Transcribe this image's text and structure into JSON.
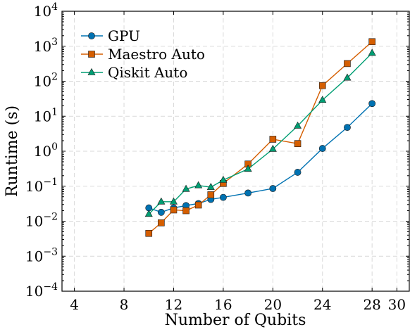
{
  "chart_data": {
    "type": "line",
    "xlabel": "Number of Qubits",
    "ylabel": "Runtime (s)",
    "y_scale": "log",
    "xlim": [
      3,
      31
    ],
    "ylim": [
      0.0001,
      10000
    ],
    "x_ticks": [
      4,
      8,
      12,
      16,
      20,
      24,
      28,
      30
    ],
    "y_ticks": [
      {
        "value": 0.0001,
        "mant": "10",
        "exp": "−4"
      },
      {
        "value": 0.001,
        "mant": "10",
        "exp": "−3"
      },
      {
        "value": 0.01,
        "mant": "10",
        "exp": "−2"
      },
      {
        "value": 0.1,
        "mant": "10",
        "exp": "−1"
      },
      {
        "value": 1,
        "mant": "10",
        "exp": "0"
      },
      {
        "value": 10,
        "mant": "10",
        "exp": "1"
      },
      {
        "value": 100,
        "mant": "10",
        "exp": "2"
      },
      {
        "value": 1000,
        "mant": "10",
        "exp": "3"
      },
      {
        "value": 10000,
        "mant": "10",
        "exp": "4"
      }
    ],
    "grid": true,
    "legend_position": "top-left",
    "series": [
      {
        "name": "GPU",
        "color": "#0072B2",
        "marker": "circle",
        "x": [
          10,
          11,
          12,
          13,
          14,
          15,
          16,
          18,
          20,
          22,
          24,
          26,
          28
        ],
        "y": [
          0.024,
          0.018,
          0.024,
          0.028,
          0.032,
          0.042,
          0.048,
          0.064,
          0.086,
          0.25,
          1.2,
          4.8,
          23
        ]
      },
      {
        "name": "Maestro Auto",
        "color": "#D55E00",
        "marker": "square",
        "x": [
          10,
          11,
          12,
          13,
          14,
          15,
          16,
          18,
          20,
          22,
          24,
          26,
          28
        ],
        "y": [
          0.0045,
          0.009,
          0.021,
          0.02,
          0.029,
          0.057,
          0.12,
          0.43,
          2.2,
          1.65,
          75,
          320,
          1350
        ]
      },
      {
        "name": "Qiskit Auto",
        "color": "#009E73",
        "marker": "triangle",
        "x": [
          10,
          11,
          12,
          13,
          14,
          15,
          16,
          18,
          20,
          22,
          24,
          26,
          28
        ],
        "y": [
          0.016,
          0.036,
          0.036,
          0.083,
          0.105,
          0.094,
          0.15,
          0.31,
          1.15,
          5.3,
          29,
          125,
          640
        ]
      }
    ]
  }
}
